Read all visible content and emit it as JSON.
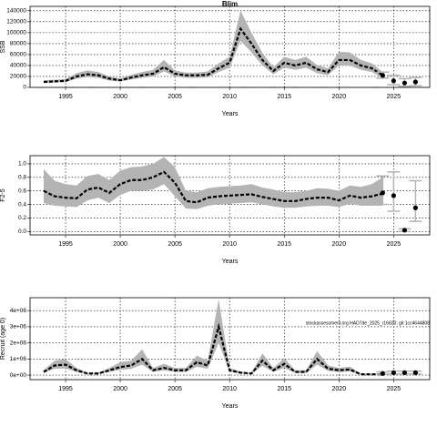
{
  "chart_data": [
    {
      "type": "line",
      "title": "Blim",
      "xlabel": "Years",
      "ylabel": "SSB",
      "x": [
        1993,
        1994,
        1995,
        1996,
        1997,
        1998,
        1999,
        2000,
        2001,
        2002,
        2003,
        2004,
        2005,
        2006,
        2007,
        2008,
        2009,
        2010,
        2011,
        2012,
        2013,
        2014,
        2015,
        2016,
        2017,
        2018,
        2019,
        2020,
        2021,
        2022,
        2023,
        2024
      ],
      "values": [
        10000,
        11000,
        12000,
        20000,
        24000,
        22000,
        16000,
        13000,
        18000,
        22000,
        25000,
        37000,
        25000,
        22000,
        22000,
        23000,
        35000,
        45000,
        107000,
        80000,
        50000,
        30000,
        45000,
        40000,
        45000,
        33000,
        28000,
        50000,
        50000,
        40000,
        35000,
        22000
      ],
      "upper": [
        13000,
        14000,
        15000,
        26000,
        31000,
        28000,
        20000,
        16000,
        23000,
        28000,
        32000,
        50000,
        31000,
        27000,
        27000,
        29000,
        44000,
        56000,
        140000,
        100000,
        63000,
        37000,
        56000,
        50000,
        56000,
        41000,
        35000,
        65000,
        64000,
        50000,
        44000,
        28000
      ],
      "lower": [
        8000,
        9000,
        9500,
        16000,
        19000,
        17500,
        12500,
        10500,
        14500,
        17500,
        20000,
        29000,
        20000,
        17500,
        17500,
        18500,
        28000,
        36000,
        85000,
        64000,
        40000,
        24000,
        36000,
        32000,
        36000,
        26000,
        22500,
        40000,
        40000,
        32000,
        28000,
        17500
      ],
      "projection": {
        "x": [
          2024,
          2025,
          2026,
          2027
        ],
        "values": [
          22000,
          12000,
          8000,
          10000
        ],
        "lower": [
          17000,
          5000,
          2000,
          3000
        ],
        "upper": [
          28000,
          22000,
          16000,
          18000
        ]
      },
      "color": "#000000",
      "band_color": "#b4b4b4",
      "error_color": "#b4b4b4",
      "xlim": [
        1991.75,
        2028.3
      ],
      "xticks": [
        1995,
        2000,
        2005,
        2010,
        2015,
        2020,
        2025
      ],
      "ylim": [
        0,
        148000
      ],
      "yticks": [
        0,
        20000,
        40000,
        60000,
        80000,
        100000,
        120000,
        140000
      ],
      "grid": true
    },
    {
      "type": "line",
      "xlabel": "Years",
      "ylabel": "F2-5",
      "x": [
        1993,
        1994,
        1995,
        1996,
        1997,
        1998,
        1999,
        2000,
        2001,
        2002,
        2003,
        2004,
        2005,
        2006,
        2007,
        2008,
        2009,
        2010,
        2011,
        2012,
        2013,
        2014,
        2015,
        2016,
        2017,
        2018,
        2019,
        2020,
        2021,
        2022,
        2023,
        2024
      ],
      "values": [
        0.6,
        0.52,
        0.5,
        0.49,
        0.62,
        0.65,
        0.57,
        0.7,
        0.76,
        0.76,
        0.8,
        0.88,
        0.72,
        0.45,
        0.43,
        0.5,
        0.52,
        0.53,
        0.54,
        0.55,
        0.51,
        0.48,
        0.45,
        0.45,
        0.48,
        0.5,
        0.5,
        0.46,
        0.53,
        0.5,
        0.52,
        0.56
      ],
      "upper": [
        0.92,
        0.75,
        0.7,
        0.68,
        0.82,
        0.85,
        0.76,
        0.9,
        0.95,
        0.96,
        1.0,
        1.1,
        0.95,
        0.6,
        0.58,
        0.64,
        0.66,
        0.67,
        0.68,
        0.7,
        0.65,
        0.62,
        0.58,
        0.58,
        0.6,
        0.64,
        0.63,
        0.6,
        0.68,
        0.66,
        0.7,
        0.8
      ],
      "lower": [
        0.42,
        0.38,
        0.37,
        0.36,
        0.46,
        0.5,
        0.42,
        0.54,
        0.6,
        0.6,
        0.62,
        0.7,
        0.52,
        0.34,
        0.33,
        0.38,
        0.4,
        0.41,
        0.42,
        0.43,
        0.4,
        0.37,
        0.35,
        0.35,
        0.37,
        0.38,
        0.38,
        0.36,
        0.41,
        0.38,
        0.38,
        0.38
      ],
      "projection": {
        "x": [
          2024,
          2025,
          2026,
          2027
        ],
        "values": [
          0.57,
          0.53,
          0.02,
          0.35
        ],
        "lower": [
          0.4,
          0.3,
          0.0,
          0.15
        ],
        "upper": [
          0.82,
          0.88,
          0.04,
          0.75
        ]
      },
      "color": "#000000",
      "band_color": "#b4b4b4",
      "error_color": "#b4b4b4",
      "xlim": [
        1991.75,
        2028.3
      ],
      "xticks": [
        1995,
        2000,
        2005,
        2010,
        2015,
        2020,
        2025
      ],
      "ylim": [
        -0.05,
        1.12
      ],
      "yticks": [
        {
          "value": 0,
          "label": "0.0"
        },
        0.2,
        0.4,
        0.6,
        0.8,
        {
          "value": 1,
          "label": "1.0"
        }
      ],
      "grid": true
    },
    {
      "type": "line",
      "xlabel": "Years",
      "ylabel": "Recruit (age 0)",
      "annotation": "stockassessment.org HAD7de_2025_r16820; git 1cc4644808",
      "x": [
        1993,
        1994,
        1995,
        1996,
        1997,
        1998,
        1999,
        2000,
        2001,
        2002,
        2003,
        2004,
        2005,
        2006,
        2007,
        2008,
        2009,
        2010,
        2011,
        2012,
        2013,
        2014,
        2015,
        2016,
        2017,
        2018,
        2019,
        2020,
        2021,
        2022,
        2023,
        2024
      ],
      "values": [
        200000,
        600000,
        650000,
        300000,
        100000,
        100000,
        300000,
        500000,
        600000,
        1000000,
        300000,
        450000,
        300000,
        300000,
        800000,
        600000,
        3000000,
        300000,
        150000,
        100000,
        900000,
        300000,
        700000,
        200000,
        200000,
        1000000,
        400000,
        300000,
        350000,
        50000,
        50000,
        50000
      ],
      "upper": [
        300000,
        900000,
        1000000,
        450000,
        150000,
        150000,
        450000,
        800000,
        900000,
        1600000,
        450000,
        700000,
        450000,
        450000,
        1200000,
        900000,
        4700000,
        450000,
        230000,
        150000,
        1350000,
        450000,
        1050000,
        300000,
        300000,
        1500000,
        600000,
        450000,
        530000,
        80000,
        80000,
        80000
      ],
      "lower": [
        130000,
        400000,
        420000,
        200000,
        65000,
        65000,
        200000,
        330000,
        400000,
        650000,
        200000,
        300000,
        200000,
        200000,
        520000,
        400000,
        2000000,
        200000,
        100000,
        65000,
        580000,
        200000,
        450000,
        130000,
        130000,
        650000,
        260000,
        200000,
        230000,
        30000,
        30000,
        30000
      ],
      "projection": {
        "x": [
          2024,
          2025,
          2026,
          2027
        ],
        "values": [
          100000,
          150000,
          150000,
          150000
        ],
        "lower": [
          50000,
          70000,
          70000,
          70000
        ],
        "upper": [
          200000,
          250000,
          250000,
          250000
        ]
      },
      "color": "#000000",
      "band_color": "#b4b4b4",
      "error_color": "#b4b4b4",
      "xlim": [
        1991.75,
        2028.3
      ],
      "xticks": [
        1995,
        2000,
        2005,
        2010,
        2015,
        2020,
        2025
      ],
      "ylim": [
        -280000,
        4800000
      ],
      "yticks": [
        {
          "value": 0,
          "label": "0e+00"
        },
        {
          "value": 1000000,
          "label": "1e+06"
        },
        {
          "value": 2000000,
          "label": "2e+06"
        },
        {
          "value": 3000000,
          "label": "3e+06"
        },
        {
          "value": 4000000,
          "label": "4e+06"
        }
      ],
      "grid": true
    }
  ]
}
